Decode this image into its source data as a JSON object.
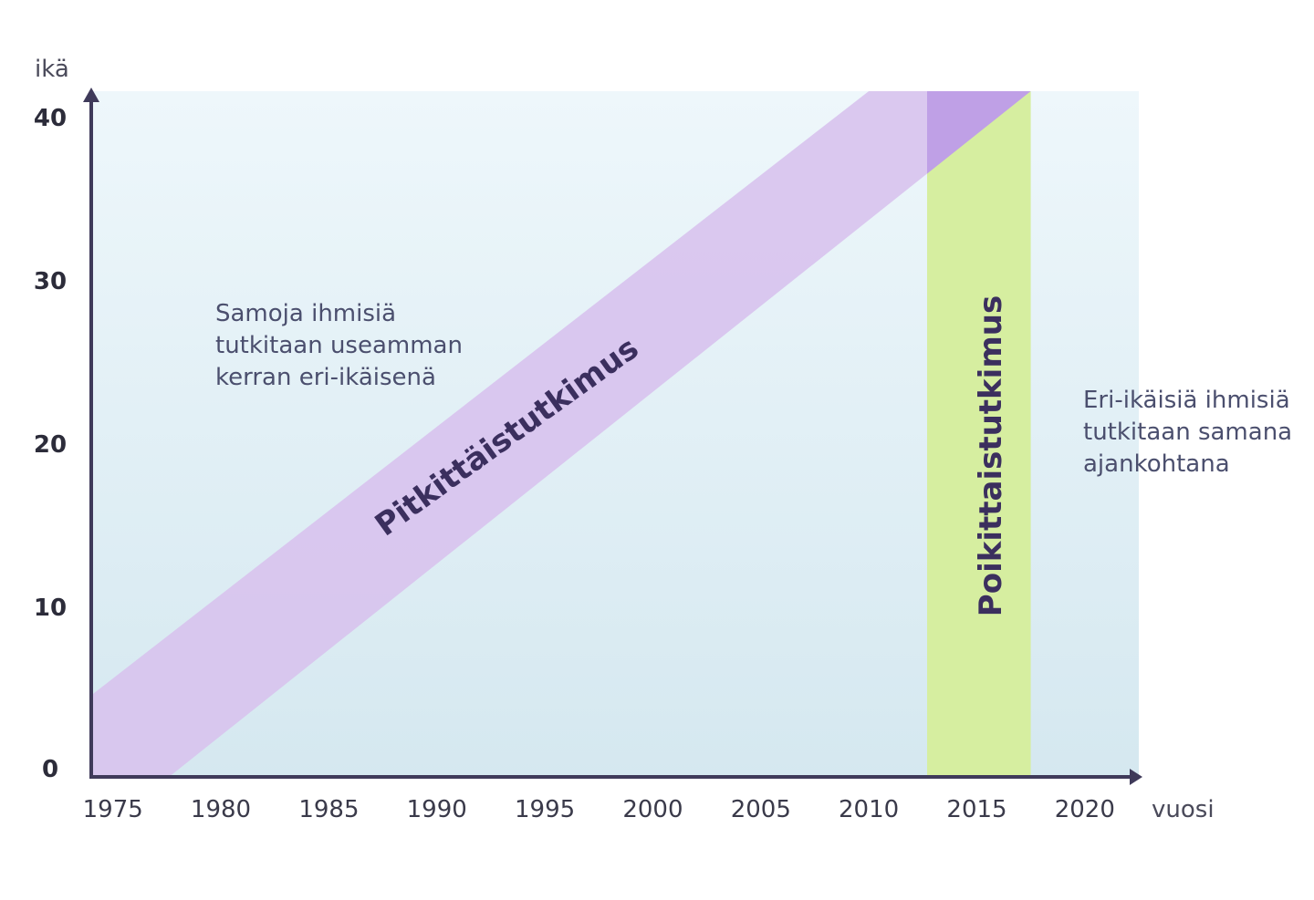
{
  "chart_data": {
    "type": "diagram",
    "y_axis_label": "ikä",
    "x_axis_label": "vuosi",
    "x_ticks": [
      "1975",
      "1980",
      "1985",
      "1990",
      "1995",
      "2000",
      "2005",
      "2010",
      "2015",
      "2020"
    ],
    "y_ticks": [
      "0",
      "10",
      "20",
      "30",
      "40"
    ],
    "xlim": [
      1974,
      2022.5
    ],
    "ylim": [
      0,
      42
    ],
    "longitudinal_band": {
      "label": "Pitkittäistutkimus",
      "color": "#d8c3ee",
      "upper_edge": [
        [
          1974,
          5
        ],
        [
          2010,
          42
        ]
      ],
      "lower_edge": [
        [
          1977.6,
          0
        ],
        [
          2017.5,
          42
        ]
      ]
    },
    "cross_sectional_band": {
      "label": "Poikittaistutkimus",
      "color": "#d6eea0",
      "x_range": [
        2012.7,
        2017.5
      ]
    },
    "overlap_color": "#bfa0e6",
    "annotations": {
      "longitudinal": [
        "Samoja ihmisiä",
        "tutkitaan useamman",
        "kerran eri-ikäisenä"
      ],
      "cross_sectional": [
        "Eri-ikäisiä ihmisiä",
        "tutkitaan samana",
        "ajankohtana"
      ]
    },
    "colors": {
      "bg_top": "#eef7fb",
      "bg_bottom": "#d5e8f0",
      "axis": "#3f3a5a"
    }
  }
}
